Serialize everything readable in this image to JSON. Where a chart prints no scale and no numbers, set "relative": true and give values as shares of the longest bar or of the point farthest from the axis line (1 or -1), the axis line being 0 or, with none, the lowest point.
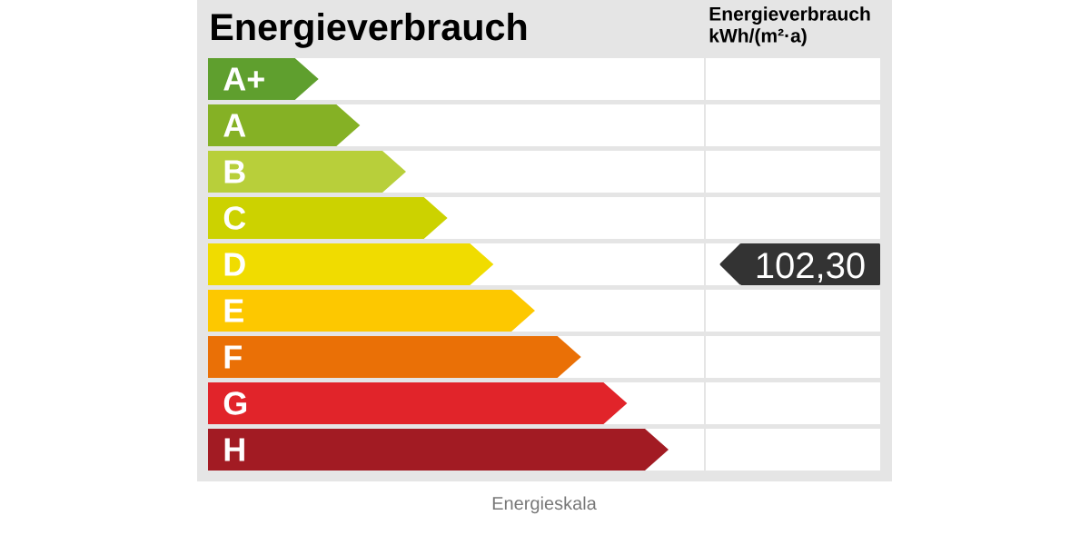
{
  "chart_data": {
    "type": "bar",
    "orientation": "horizontal",
    "relative": true,
    "title": "Energieverbrauch",
    "categories": [
      "A+",
      "A",
      "B",
      "C",
      "D",
      "E",
      "F",
      "G",
      "H"
    ],
    "values": [
      0.24,
      0.33,
      0.43,
      0.52,
      0.62,
      0.71,
      0.81,
      0.91,
      1
    ],
    "colors": [
      "#5f9f2e",
      "#85b125",
      "#b8cf3a",
      "#ccd200",
      "#f0dc00",
      "#fdc800",
      "#ea7006",
      "#e1242a",
      "#a21b23"
    ],
    "annotations": [
      "Energieverbrauch kWh/(m²·a)",
      "102,30",
      "Energieskala"
    ]
  }
}
